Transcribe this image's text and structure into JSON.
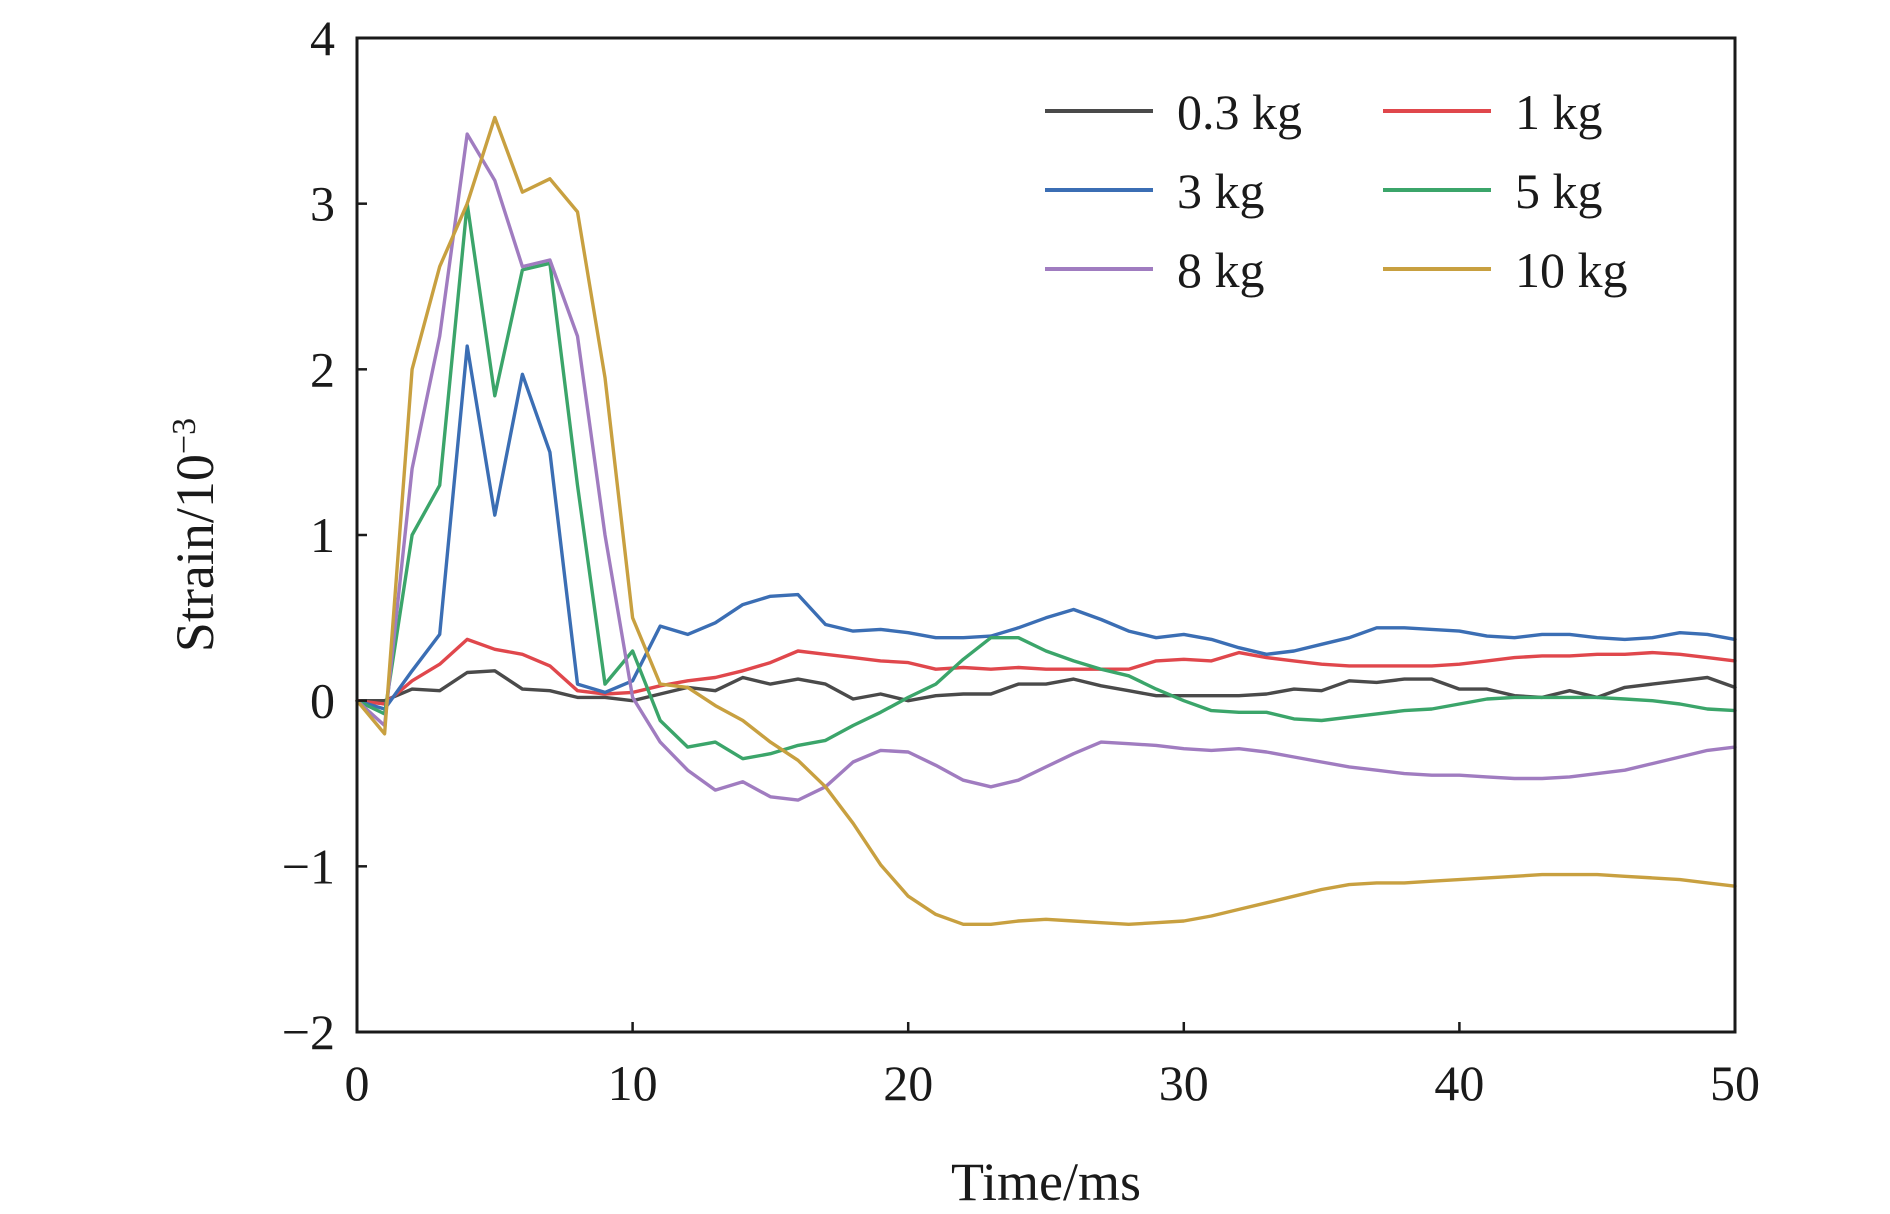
{
  "chart_data": {
    "type": "line",
    "xlabel": "Time/ms",
    "ylabel": "Strain/10",
    "ylabel_exponent": "−3",
    "xlim": [
      0,
      50
    ],
    "ylim": [
      -2,
      4
    ],
    "x_ticks": [
      0,
      10,
      20,
      30,
      40,
      50
    ],
    "x_tick_labels": [
      "0",
      "10",
      "20",
      "30",
      "40",
      "50"
    ],
    "y_ticks": [
      -2,
      -1,
      0,
      1,
      2,
      3,
      4
    ],
    "y_tick_labels": [
      "−2",
      "−1",
      "0",
      "1",
      "2",
      "3",
      "4"
    ],
    "grid": false,
    "legend_position": "top-right",
    "x": [
      0,
      1,
      2,
      3,
      4,
      5,
      6,
      7,
      8,
      9,
      10,
      11,
      12,
      13,
      14,
      15,
      16,
      17,
      18,
      19,
      20,
      21,
      22,
      23,
      24,
      25,
      26,
      27,
      28,
      29,
      30,
      31,
      32,
      33,
      34,
      35,
      36,
      37,
      38,
      39,
      40,
      41,
      42,
      43,
      44,
      45,
      46,
      47,
      48,
      49,
      50
    ],
    "series": [
      {
        "name": "0.3 kg",
        "color": "#4a4a4a",
        "values": [
          0,
          0,
          0.07,
          0.06,
          0.17,
          0.18,
          0.07,
          0.06,
          0.02,
          0.02,
          0.0,
          0.04,
          0.08,
          0.06,
          0.14,
          0.1,
          0.13,
          0.1,
          0.01,
          0.04,
          0.0,
          0.03,
          0.04,
          0.04,
          0.1,
          0.1,
          0.13,
          0.09,
          0.06,
          0.03,
          0.03,
          0.03,
          0.03,
          0.04,
          0.07,
          0.06,
          0.12,
          0.11,
          0.13,
          0.13,
          0.07,
          0.07,
          0.03,
          0.02,
          0.06,
          0.02,
          0.08,
          0.1,
          0.12,
          0.14,
          0.08
        ]
      },
      {
        "name": "1 kg",
        "color": "#e0474c",
        "values": [
          0,
          -0.02,
          0.12,
          0.22,
          0.37,
          0.31,
          0.28,
          0.21,
          0.06,
          0.04,
          0.05,
          0.09,
          0.12,
          0.14,
          0.18,
          0.23,
          0.3,
          0.28,
          0.26,
          0.24,
          0.23,
          0.19,
          0.2,
          0.19,
          0.2,
          0.19,
          0.19,
          0.19,
          0.19,
          0.24,
          0.25,
          0.24,
          0.29,
          0.26,
          0.24,
          0.22,
          0.21,
          0.21,
          0.21,
          0.21,
          0.22,
          0.24,
          0.26,
          0.27,
          0.27,
          0.28,
          0.28,
          0.29,
          0.28,
          0.26,
          0.24
        ]
      },
      {
        "name": "3 kg",
        "color": "#3b6eb4",
        "values": [
          0,
          -0.05,
          0.18,
          0.4,
          2.14,
          1.12,
          1.97,
          1.5,
          0.1,
          0.05,
          0.12,
          0.45,
          0.4,
          0.47,
          0.58,
          0.63,
          0.64,
          0.46,
          0.42,
          0.43,
          0.41,
          0.38,
          0.38,
          0.39,
          0.44,
          0.5,
          0.55,
          0.49,
          0.42,
          0.38,
          0.4,
          0.37,
          0.32,
          0.28,
          0.3,
          0.34,
          0.38,
          0.44,
          0.44,
          0.43,
          0.42,
          0.39,
          0.38,
          0.4,
          0.4,
          0.38,
          0.37,
          0.38,
          0.41,
          0.4,
          0.37
        ]
      },
      {
        "name": "5 kg",
        "color": "#3ba56a",
        "values": [
          0,
          -0.08,
          1.0,
          1.3,
          3.0,
          1.84,
          2.6,
          2.64,
          1.3,
          0.1,
          0.3,
          -0.12,
          -0.28,
          -0.25,
          -0.35,
          -0.32,
          -0.27,
          -0.24,
          -0.15,
          -0.07,
          0.02,
          0.1,
          0.25,
          0.38,
          0.38,
          0.3,
          0.24,
          0.19,
          0.15,
          0.07,
          0.0,
          -0.06,
          -0.07,
          -0.07,
          -0.11,
          -0.12,
          -0.1,
          -0.08,
          -0.06,
          -0.05,
          -0.02,
          0.01,
          0.02,
          0.02,
          0.02,
          0.02,
          0.01,
          0.0,
          -0.02,
          -0.05,
          -0.06
        ]
      },
      {
        "name": "8 kg",
        "color": "#a07cc0",
        "values": [
          0,
          -0.15,
          1.4,
          2.2,
          3.42,
          3.14,
          2.62,
          2.66,
          2.2,
          1.0,
          0.02,
          -0.25,
          -0.42,
          -0.54,
          -0.49,
          -0.58,
          -0.6,
          -0.52,
          -0.37,
          -0.3,
          -0.31,
          -0.39,
          -0.48,
          -0.52,
          -0.48,
          -0.4,
          -0.32,
          -0.25,
          -0.26,
          -0.27,
          -0.29,
          -0.3,
          -0.29,
          -0.31,
          -0.34,
          -0.37,
          -0.4,
          -0.42,
          -0.44,
          -0.45,
          -0.45,
          -0.46,
          -0.47,
          -0.47,
          -0.46,
          -0.44,
          -0.42,
          -0.38,
          -0.34,
          -0.3,
          -0.28
        ]
      },
      {
        "name": "10 kg",
        "color": "#c8a040",
        "values": [
          0,
          -0.2,
          2.0,
          2.62,
          3.0,
          3.52,
          3.07,
          3.15,
          2.95,
          1.95,
          0.5,
          0.1,
          0.08,
          -0.03,
          -0.12,
          -0.25,
          -0.36,
          -0.52,
          -0.74,
          -0.99,
          -1.18,
          -1.29,
          -1.35,
          -1.35,
          -1.33,
          -1.32,
          -1.33,
          -1.34,
          -1.35,
          -1.34,
          -1.33,
          -1.3,
          -1.26,
          -1.22,
          -1.18,
          -1.14,
          -1.11,
          -1.1,
          -1.1,
          -1.09,
          -1.08,
          -1.07,
          -1.06,
          -1.05,
          -1.05,
          -1.05,
          -1.06,
          -1.07,
          -1.08,
          -1.1,
          -1.12
        ]
      }
    ]
  }
}
